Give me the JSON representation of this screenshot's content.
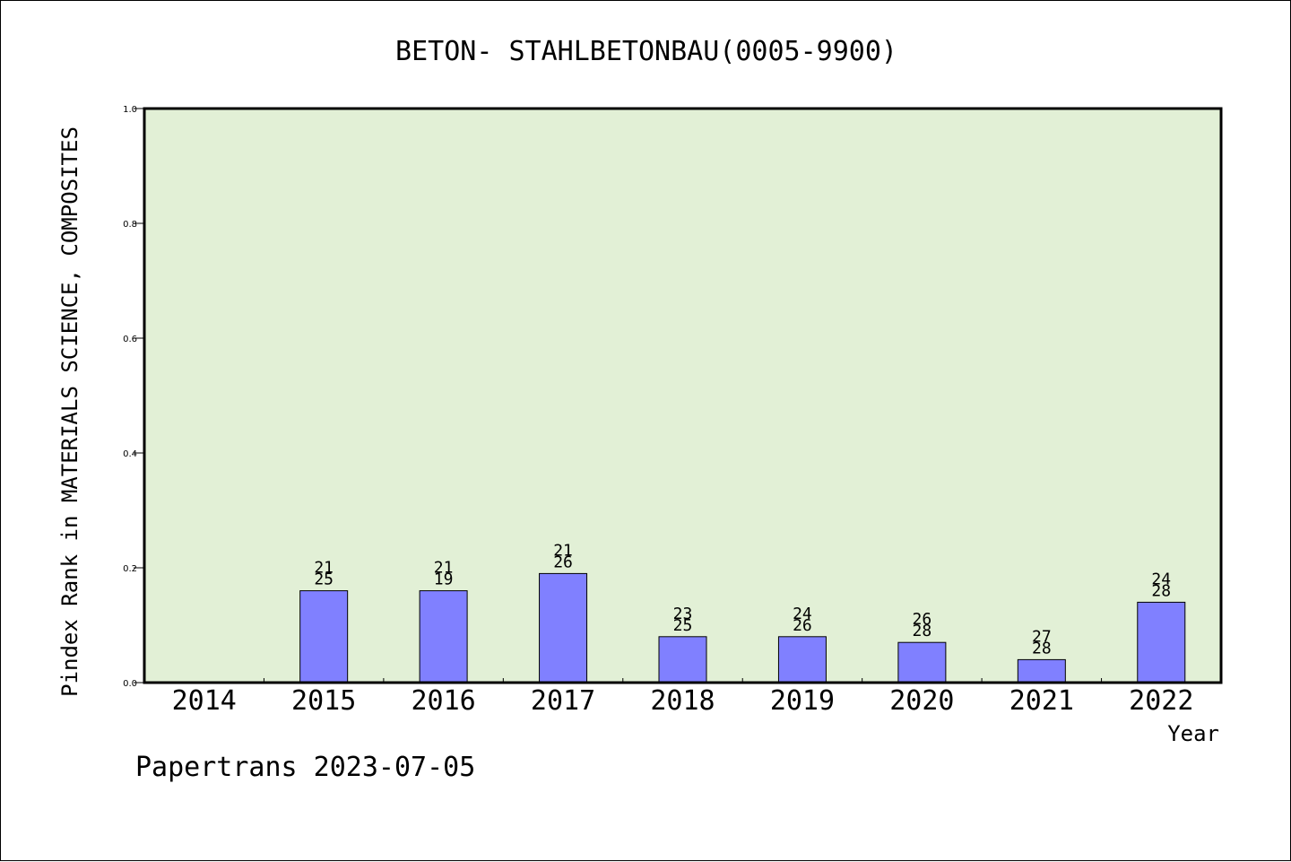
{
  "chart_data": {
    "type": "bar",
    "title": "BETON- STAHLBETONBAU(0005-9900)",
    "xlabel": "Year",
    "ylabel": "Pindex Rank in MATERIALS SCIENCE, COMPOSITES",
    "footer": "Papertrans 2023-07-05",
    "categories": [
      "2014",
      "2015",
      "2016",
      "2017",
      "2018",
      "2019",
      "2020",
      "2021",
      "2022"
    ],
    "values": [
      null,
      0.16,
      0.16,
      0.19,
      0.08,
      0.08,
      0.07,
      0.04,
      0.14
    ],
    "labels_top": [
      "",
      "21",
      "21",
      "21",
      "23",
      "24",
      "26",
      "27",
      "24"
    ],
    "labels_bottom": [
      "",
      "25",
      "19",
      "26",
      "25",
      "26",
      "28",
      "28",
      "28"
    ],
    "ylim": [
      0.0,
      1.0
    ],
    "yticks": [
      "0.0",
      "0.2",
      "0.4",
      "0.6",
      "0.8",
      "1.0"
    ],
    "grid": false,
    "colors": {
      "plot_background": "#e2f0d6",
      "bar_fill": "#8080ff",
      "bar_stroke": "#000000",
      "axis": "#000000"
    }
  }
}
